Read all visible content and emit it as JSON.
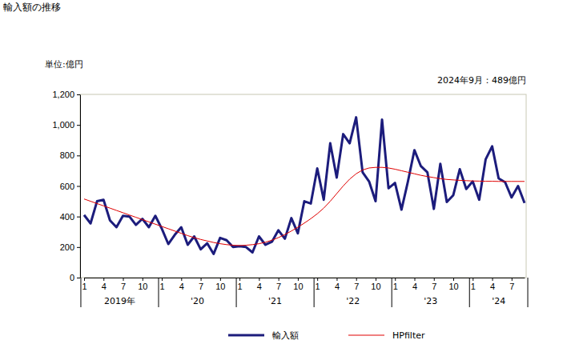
{
  "chart_data": {
    "type": "line",
    "title": "輸入額の推移",
    "ylabel": "単位:億円",
    "annotation": "2024年9月：489億円",
    "categories": [
      "1",
      null,
      null,
      "4",
      null,
      null,
      "7",
      null,
      null,
      "10",
      null,
      null,
      "1",
      null,
      null,
      "4",
      null,
      null,
      "7",
      null,
      null,
      "10",
      null,
      null,
      "1",
      null,
      null,
      "4",
      null,
      null,
      "7",
      null,
      null,
      "10",
      null,
      null,
      "1",
      null,
      null,
      "4",
      null,
      null,
      "7",
      null,
      null,
      "10",
      null,
      null,
      "1",
      null,
      null,
      "4",
      null,
      null,
      "7",
      null,
      null,
      "10",
      null,
      null,
      "1",
      null,
      null,
      "4",
      null,
      null,
      "7",
      null,
      null
    ],
    "x_groups": [
      {
        "label": "2019年",
        "size": 12
      },
      {
        "label": "'20",
        "size": 12
      },
      {
        "label": "'21",
        "size": 12
      },
      {
        "label": "'22",
        "size": 12
      },
      {
        "label": "'23",
        "size": 12
      },
      {
        "label": "'24",
        "size": 9
      }
    ],
    "series": [
      {
        "name": "輸入額",
        "color": "#1c1c7c",
        "values": [
          410,
          355,
          500,
          510,
          375,
          330,
          405,
          400,
          345,
          385,
          330,
          405,
          320,
          220,
          280,
          330,
          215,
          270,
          185,
          225,
          155,
          260,
          245,
          200,
          205,
          200,
          165,
          270,
          215,
          235,
          310,
          255,
          390,
          290,
          500,
          485,
          715,
          510,
          880,
          655,
          940,
          880,
          1050,
          690,
          630,
          500,
          1035,
          585,
          620,
          445,
          630,
          835,
          730,
          690,
          450,
          745,
          495,
          540,
          710,
          580,
          630,
          510,
          775,
          860,
          650,
          625,
          525,
          600,
          489
        ]
      },
      {
        "name": "HPfilter",
        "color": "#e00000",
        "values": [
          515,
          500,
          485,
          470,
          455,
          440,
          425,
          410,
          395,
          380,
          365,
          350,
          335,
          320,
          305,
          290,
          275,
          262,
          250,
          240,
          230,
          222,
          216,
          212,
          210,
          212,
          216,
          222,
          232,
          245,
          262,
          282,
          305,
          330,
          357,
          386,
          418,
          455,
          500,
          550,
          600,
          645,
          680,
          705,
          718,
          722,
          722,
          718,
          710,
          700,
          690,
          680,
          670,
          662,
          655,
          648,
          643,
          640,
          637,
          635,
          633,
          632,
          631,
          631,
          630,
          630,
          630,
          630,
          630
        ]
      }
    ],
    "ylim": [
      0,
      1200
    ],
    "yticks": [
      0,
      200,
      400,
      600,
      800,
      {
        "value": 1000,
        "label": "1,000"
      },
      {
        "value": 1200,
        "label": "1,200"
      }
    ],
    "grid": false,
    "legend": "bottom"
  }
}
